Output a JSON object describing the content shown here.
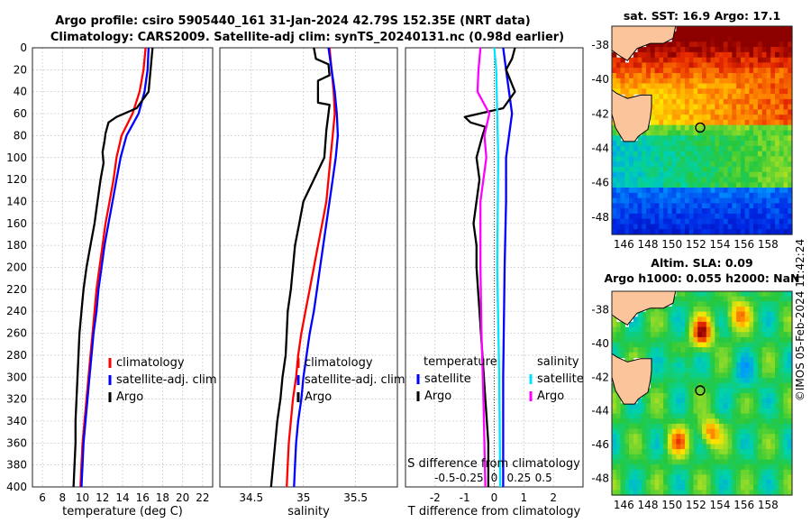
{
  "titles": {
    "line1": "Argo profile: csiro 5905440_161 31-Jan-2024 42.79S 152.35E (NRT data)",
    "line2": "Climatology: CARS2009. Satellite-adj clim: synTS_20240131.nc (0.98d earlier)"
  },
  "colors": {
    "climatology": "#ff0000",
    "satellite": "#0000ff",
    "argo": "#000000",
    "sal_satellite": "#00e5ff",
    "sal_argo": "#ff00ff"
  },
  "chart_data": [
    {
      "type": "line",
      "name": "temperature-profile",
      "xlabel": "temperature (deg C)",
      "xlim": [
        5,
        23
      ],
      "ylim": [
        400,
        0
      ],
      "xticks": [
        "6",
        "8",
        "10",
        "12",
        "14",
        "16",
        "18",
        "20",
        "22"
      ],
      "yticks": [
        "0",
        "20",
        "40",
        "60",
        "80",
        "100",
        "120",
        "140",
        "160",
        "180",
        "200",
        "220",
        "240",
        "260",
        "280",
        "300",
        "320",
        "340",
        "360",
        "380",
        "400"
      ],
      "grid": true,
      "legend": [
        "climatology",
        "satellite-adj. clim",
        "Argo"
      ],
      "series": [
        {
          "name": "climatology",
          "points": [
            [
              16.3,
              0
            ],
            [
              16.1,
              20
            ],
            [
              15.7,
              40
            ],
            [
              15.0,
              60
            ],
            [
              13.9,
              80
            ],
            [
              13.4,
              100
            ],
            [
              13.1,
              120
            ],
            [
              12.7,
              140
            ],
            [
              12.3,
              160
            ],
            [
              12.0,
              180
            ],
            [
              11.7,
              200
            ],
            [
              11.4,
              220
            ],
            [
              11.2,
              240
            ],
            [
              11.0,
              260
            ],
            [
              10.8,
              280
            ],
            [
              10.6,
              300
            ],
            [
              10.4,
              320
            ],
            [
              10.2,
              340
            ],
            [
              10.0,
              360
            ],
            [
              9.9,
              380
            ],
            [
              9.8,
              400
            ]
          ]
        },
        {
          "name": "satellite-adj. clim",
          "points": [
            [
              16.6,
              0
            ],
            [
              16.5,
              20
            ],
            [
              16.2,
              40
            ],
            [
              15.6,
              60
            ],
            [
              14.4,
              80
            ],
            [
              13.8,
              100
            ],
            [
              13.4,
              120
            ],
            [
              13.0,
              140
            ],
            [
              12.6,
              160
            ],
            [
              12.2,
              180
            ],
            [
              11.9,
              200
            ],
            [
              11.6,
              220
            ],
            [
              11.4,
              240
            ],
            [
              11.1,
              260
            ],
            [
              10.9,
              280
            ],
            [
              10.7,
              300
            ],
            [
              10.5,
              320
            ],
            [
              10.3,
              340
            ],
            [
              10.1,
              360
            ],
            [
              10.0,
              380
            ],
            [
              9.9,
              400
            ]
          ]
        },
        {
          "name": "Argo",
          "points": [
            [
              17.0,
              0
            ],
            [
              16.9,
              10
            ],
            [
              16.8,
              20
            ],
            [
              16.6,
              40
            ],
            [
              15.4,
              55
            ],
            [
              13.4,
              63
            ],
            [
              12.6,
              68
            ],
            [
              12.3,
              78
            ],
            [
              12.2,
              85
            ],
            [
              12.0,
              95
            ],
            [
              12.1,
              105
            ],
            [
              11.8,
              120
            ],
            [
              11.5,
              140
            ],
            [
              11.2,
              160
            ],
            [
              10.8,
              180
            ],
            [
              10.4,
              200
            ],
            [
              10.1,
              220
            ],
            [
              9.9,
              240
            ],
            [
              9.7,
              260
            ],
            [
              9.6,
              280
            ],
            [
              9.5,
              300
            ],
            [
              9.4,
              320
            ],
            [
              9.3,
              340
            ],
            [
              9.3,
              360
            ],
            [
              9.2,
              380
            ],
            [
              9.1,
              400
            ]
          ]
        }
      ]
    },
    {
      "type": "line",
      "name": "salinity-profile",
      "xlabel": "salinity",
      "xlim": [
        34.2,
        35.9
      ],
      "ylim": [
        400,
        0
      ],
      "xticks": [
        "34.5",
        "35",
        "35.5"
      ],
      "grid": true,
      "legend": [
        "climatology",
        "satellite-adj. clim",
        "Argo"
      ],
      "series": [
        {
          "name": "climatology",
          "points": [
            [
              35.25,
              0
            ],
            [
              35.27,
              20
            ],
            [
              35.29,
              40
            ],
            [
              35.3,
              60
            ],
            [
              35.28,
              80
            ],
            [
              35.26,
              100
            ],
            [
              35.24,
              120
            ],
            [
              35.22,
              140
            ],
            [
              35.18,
              160
            ],
            [
              35.14,
              180
            ],
            [
              35.1,
              200
            ],
            [
              35.06,
              220
            ],
            [
              35.02,
              240
            ],
            [
              34.98,
              260
            ],
            [
              34.95,
              280
            ],
            [
              34.93,
              300
            ],
            [
              34.9,
              320
            ],
            [
              34.88,
              340
            ],
            [
              34.86,
              360
            ],
            [
              34.85,
              380
            ],
            [
              34.84,
              400
            ]
          ]
        },
        {
          "name": "satellite-adj. clim",
          "points": [
            [
              35.24,
              0
            ],
            [
              35.27,
              20
            ],
            [
              35.3,
              40
            ],
            [
              35.32,
              60
            ],
            [
              35.33,
              80
            ],
            [
              35.31,
              100
            ],
            [
              35.28,
              120
            ],
            [
              35.25,
              140
            ],
            [
              35.22,
              160
            ],
            [
              35.19,
              180
            ],
            [
              35.16,
              200
            ],
            [
              35.13,
              220
            ],
            [
              35.1,
              240
            ],
            [
              35.06,
              260
            ],
            [
              35.03,
              280
            ],
            [
              35.0,
              300
            ],
            [
              34.98,
              320
            ],
            [
              34.95,
              340
            ],
            [
              34.93,
              360
            ],
            [
              34.92,
              380
            ],
            [
              34.91,
              400
            ]
          ]
        },
        {
          "name": "Argo",
          "points": [
            [
              35.1,
              0
            ],
            [
              35.12,
              10
            ],
            [
              35.24,
              15
            ],
            [
              35.25,
              25
            ],
            [
              35.14,
              30
            ],
            [
              35.14,
              50
            ],
            [
              35.25,
              52
            ],
            [
              35.24,
              60
            ],
            [
              35.22,
              75
            ],
            [
              35.2,
              100
            ],
            [
              35.1,
              120
            ],
            [
              35.0,
              140
            ],
            [
              34.96,
              160
            ],
            [
              34.92,
              180
            ],
            [
              34.9,
              200
            ],
            [
              34.88,
              220
            ],
            [
              34.85,
              240
            ],
            [
              34.84,
              260
            ],
            [
              34.83,
              280
            ],
            [
              34.8,
              300
            ],
            [
              34.78,
              320
            ],
            [
              34.75,
              340
            ],
            [
              34.73,
              360
            ],
            [
              34.71,
              380
            ],
            [
              34.69,
              400
            ]
          ]
        }
      ]
    },
    {
      "type": "line",
      "name": "difference-profile",
      "xlabel": "T difference from climatology",
      "xlabel_top": "S difference from climatology",
      "xlim": [
        -3,
        3
      ],
      "xlim_top": [
        -0.9,
        0.9
      ],
      "ylim": [
        400,
        0
      ],
      "xticks": [
        "-2",
        "-1",
        "0",
        "1",
        "2"
      ],
      "xticks_top": [
        "-0.5",
        "-0.25",
        "0",
        "0.25",
        "0.5"
      ],
      "grid": true,
      "legend_temperature_title": "temperature",
      "legend_salinity_title": "salinity",
      "legend_temperature": [
        "satellite",
        "Argo"
      ],
      "legend_salinity": [
        "satellite",
        "Argo"
      ],
      "series": [
        {
          "name": "T satellite",
          "points": [
            [
              0.3,
              0
            ],
            [
              0.4,
              20
            ],
            [
              0.5,
              40
            ],
            [
              0.6,
              60
            ],
            [
              0.5,
              80
            ],
            [
              0.4,
              100
            ],
            [
              0.4,
              140
            ],
            [
              0.35,
              200
            ],
            [
              0.3,
              300
            ],
            [
              0.3,
              400
            ]
          ]
        },
        {
          "name": "T Argo",
          "points": [
            [
              0.7,
              0
            ],
            [
              0.6,
              10
            ],
            [
              0.4,
              20
            ],
            [
              0.7,
              40
            ],
            [
              0.3,
              55
            ],
            [
              -1.0,
              63
            ],
            [
              -0.8,
              68
            ],
            [
              -0.3,
              72
            ],
            [
              -0.4,
              80
            ],
            [
              -0.5,
              90
            ],
            [
              -0.6,
              100
            ],
            [
              -0.5,
              120
            ],
            [
              -0.6,
              140
            ],
            [
              -0.7,
              160
            ],
            [
              -0.6,
              180
            ],
            [
              -0.6,
              200
            ],
            [
              -0.5,
              240
            ],
            [
              -0.4,
              280
            ],
            [
              -0.3,
              320
            ],
            [
              -0.2,
              360
            ],
            [
              -0.2,
              400
            ]
          ]
        },
        {
          "name": "S satellite",
          "points": [
            [
              0.0,
              0
            ],
            [
              0.02,
              20
            ],
            [
              0.03,
              60
            ],
            [
              0.04,
              100
            ],
            [
              0.03,
              200
            ],
            [
              0.05,
              300
            ],
            [
              0.06,
              400
            ]
          ]
        },
        {
          "name": "S Argo",
          "points": [
            [
              -0.14,
              0
            ],
            [
              -0.16,
              20
            ],
            [
              -0.17,
              40
            ],
            [
              -0.05,
              60
            ],
            [
              -0.1,
              80
            ],
            [
              -0.08,
              100
            ],
            [
              -0.14,
              140
            ],
            [
              -0.14,
              200
            ],
            [
              -0.13,
              260
            ],
            [
              -0.11,
              320
            ],
            [
              -0.09,
              400
            ]
          ]
        }
      ]
    },
    {
      "type": "heatmap",
      "name": "sst-map",
      "title": "sat. SST: 16.9 Argo: 17.1",
      "xticks": [
        "146",
        "148",
        "150",
        "152",
        "154",
        "156",
        "158"
      ],
      "yticks": [
        "-38",
        "-40",
        "-42",
        "-44",
        "-46",
        "-48"
      ],
      "xlim": [
        145,
        160
      ],
      "ylim": [
        -49,
        -36.9
      ],
      "argo_position": [
        152.35,
        -42.79
      ]
    },
    {
      "type": "heatmap",
      "name": "sla-map",
      "title_line1": "Altim. SLA: 0.09",
      "title_line2": "Argo h1000: 0.055 h2000: NaN",
      "xticks": [
        "146",
        "148",
        "150",
        "152",
        "154",
        "156",
        "158"
      ],
      "yticks": [
        "-38",
        "-40",
        "-42",
        "-44",
        "-46",
        "-48"
      ],
      "xlim": [
        145,
        160
      ],
      "ylim": [
        -49,
        -36.9
      ],
      "argo_position": [
        152.35,
        -42.79
      ]
    }
  ],
  "credit": "©IMOS 05-Feb-2024 11:42:24"
}
